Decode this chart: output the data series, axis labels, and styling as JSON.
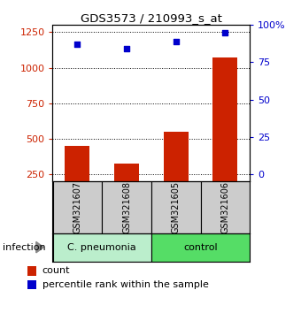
{
  "title": "GDS3573 / 210993_s_at",
  "samples": [
    "GSM321607",
    "GSM321608",
    "GSM321605",
    "GSM321606"
  ],
  "counts": [
    450,
    325,
    550,
    1075
  ],
  "percentile_ranks": [
    87,
    84,
    89,
    95
  ],
  "ylim_left": [
    200,
    1300
  ],
  "ylim_right": [
    -5,
    100
  ],
  "yticks_left": [
    250,
    500,
    750,
    1000,
    1250
  ],
  "yticks_right": [
    0,
    25,
    50,
    75,
    100
  ],
  "bar_color": "#cc2200",
  "scatter_color": "#0000cc",
  "group_colors": [
    "#bbeecc",
    "#55dd66"
  ],
  "sample_box_color": "#cccccc",
  "infection_label": "infection",
  "legend_count_label": "count",
  "legend_pct_label": "percentile rank within the sample",
  "left_axis_color": "#cc2200",
  "right_axis_color": "#0000cc"
}
